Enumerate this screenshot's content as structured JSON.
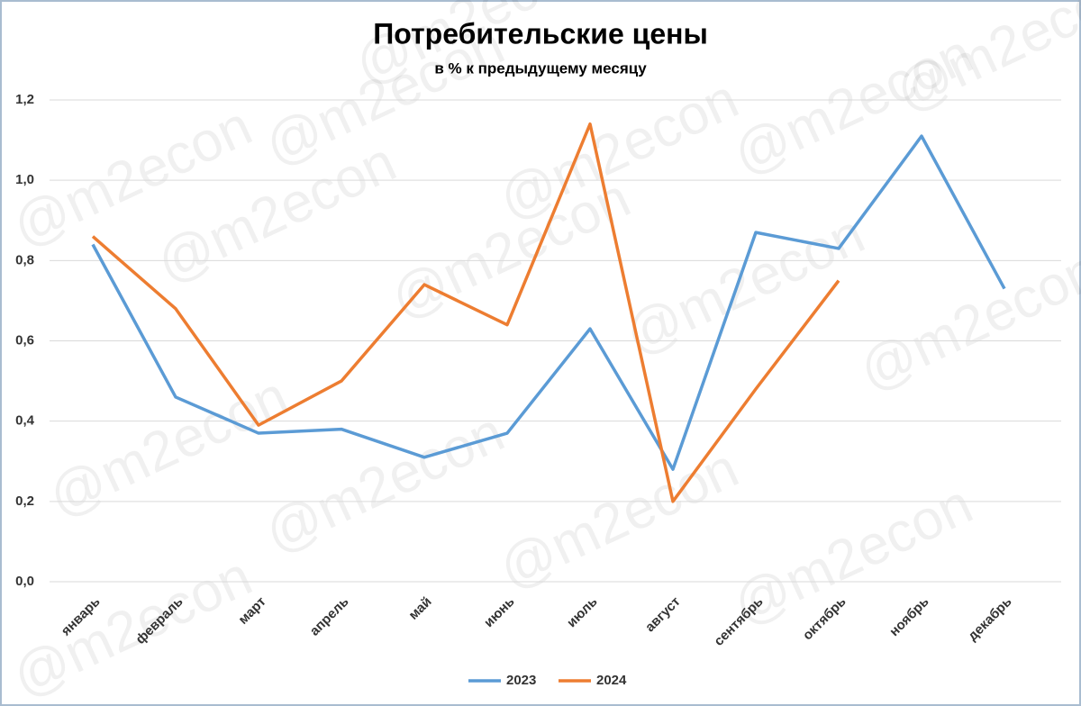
{
  "chart_data": {
    "type": "line",
    "title": "Потребительские цены",
    "subtitle": "в % к предыдущему месяцу",
    "watermark": "@m2econ",
    "categories": [
      "январь",
      "февраль",
      "март",
      "апрель",
      "май",
      "июнь",
      "июль",
      "август",
      "сентябрь",
      "октябрь",
      "ноябрь",
      "декабрь"
    ],
    "series": [
      {
        "name": "2023",
        "color": "#5b9bd5",
        "values": [
          0.84,
          0.46,
          0.37,
          0.38,
          0.31,
          0.37,
          0.63,
          0.28,
          0.87,
          0.83,
          1.11,
          0.73
        ]
      },
      {
        "name": "2024",
        "color": "#ed7d31",
        "values": [
          0.86,
          0.68,
          0.39,
          0.5,
          0.74,
          0.64,
          1.14,
          0.2,
          0.48,
          0.75,
          null,
          null
        ]
      }
    ],
    "ylim": [
      0,
      1.2
    ],
    "yticks": [
      {
        "value": 0,
        "label": "0,0"
      },
      {
        "value": 0.2,
        "label": "0,2"
      },
      {
        "value": 0.4,
        "label": "0,4"
      },
      {
        "value": 0.6,
        "label": "0,6"
      },
      {
        "value": 0.8,
        "label": "0,8"
      },
      {
        "value": 1.0,
        "label": "1,0"
      },
      {
        "value": 1.2,
        "label": "1,2"
      }
    ],
    "grid": true,
    "legend": "bottom"
  }
}
